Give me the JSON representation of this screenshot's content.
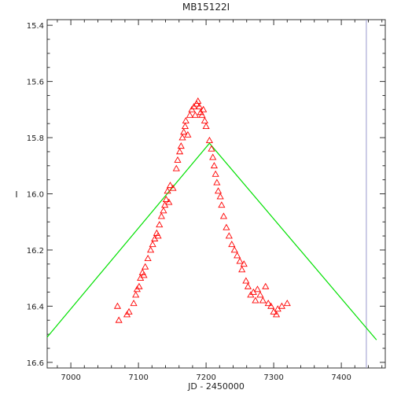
{
  "chart_data": {
    "type": "scatter",
    "title": "MB15122I",
    "xlabel": "JD - 2450000",
    "ylabel": "I",
    "xlim": [
      6965,
      7465
    ],
    "ylim": [
      16.62,
      15.38
    ],
    "y_axis_inverted": true,
    "xticks": [
      "7000",
      "7100",
      "7200",
      "7300",
      "7400"
    ],
    "yticks": [
      "15.4",
      "15.6",
      "15.8",
      "16.0",
      "16.2",
      "16.4",
      "16.6"
    ],
    "grid": false,
    "marker": "open-triangle",
    "colors": {
      "points": "#ff0000",
      "model": "#00e000",
      "marker_line": "#9999cc",
      "frame": "#333333"
    },
    "series": [
      {
        "values": [
          [
            7069,
            16.4
          ],
          [
            7071,
            16.45
          ],
          [
            7083,
            16.43
          ],
          [
            7086,
            16.42
          ],
          [
            7093,
            16.39
          ],
          [
            7096,
            16.36
          ],
          [
            7098,
            16.34
          ],
          [
            7101,
            16.33
          ],
          [
            7103,
            16.3
          ],
          [
            7106,
            16.28
          ],
          [
            7108,
            16.29
          ],
          [
            7110,
            16.26
          ],
          [
            7114,
            16.23
          ],
          [
            7118,
            16.2
          ],
          [
            7121,
            16.18
          ],
          [
            7124,
            16.16
          ],
          [
            7127,
            16.14
          ],
          [
            7129,
            16.15
          ],
          [
            7131,
            16.11
          ],
          [
            7134,
            16.08
          ],
          [
            7137,
            16.06
          ],
          [
            7139,
            16.04
          ],
          [
            7141,
            16.02
          ],
          [
            7143,
            15.99
          ],
          [
            7145,
            16.03
          ],
          [
            7147,
            15.97
          ],
          [
            7151,
            15.98
          ],
          [
            7156,
            15.91
          ],
          [
            7158,
            15.88
          ],
          [
            7161,
            15.85
          ],
          [
            7163,
            15.83
          ],
          [
            7165,
            15.8
          ],
          [
            7167,
            15.78
          ],
          [
            7169,
            15.76
          ],
          [
            7170,
            15.74
          ],
          [
            7173,
            15.79
          ],
          [
            7176,
            15.72
          ],
          [
            7179,
            15.7
          ],
          [
            7182,
            15.69
          ],
          [
            7184,
            15.72
          ],
          [
            7186,
            15.68
          ],
          [
            7188,
            15.67
          ],
          [
            7190,
            15.69
          ],
          [
            7192,
            15.71
          ],
          [
            7194,
            15.72
          ],
          [
            7196,
            15.7
          ],
          [
            7198,
            15.74
          ],
          [
            7200,
            15.76
          ],
          [
            7205,
            15.81
          ],
          [
            7208,
            15.84
          ],
          [
            7210,
            15.87
          ],
          [
            7212,
            15.9
          ],
          [
            7214,
            15.93
          ],
          [
            7216,
            15.96
          ],
          [
            7218,
            15.99
          ],
          [
            7221,
            16.01
          ],
          [
            7223,
            16.04
          ],
          [
            7226,
            16.08
          ],
          [
            7230,
            16.12
          ],
          [
            7234,
            16.15
          ],
          [
            7238,
            16.18
          ],
          [
            7242,
            16.2
          ],
          [
            7246,
            16.22
          ],
          [
            7250,
            16.24
          ],
          [
            7253,
            16.27
          ],
          [
            7256,
            16.25
          ],
          [
            7259,
            16.31
          ],
          [
            7262,
            16.33
          ],
          [
            7266,
            16.36
          ],
          [
            7270,
            16.35
          ],
          [
            7273,
            16.38
          ],
          [
            7276,
            16.34
          ],
          [
            7280,
            16.36
          ],
          [
            7284,
            16.38
          ],
          [
            7288,
            16.33
          ],
          [
            7292,
            16.39
          ],
          [
            7296,
            16.4
          ],
          [
            7300,
            16.42
          ],
          [
            7304,
            16.43
          ],
          [
            7306,
            16.41
          ],
          [
            7312,
            16.4
          ],
          [
            7320,
            16.39
          ]
        ]
      },
      {
        "type": "line",
        "values": [
          [
            6965,
            16.51
          ],
          [
            7205,
            15.82
          ],
          [
            7452,
            16.52
          ]
        ]
      }
    ],
    "vertical_marker_x": 7437
  }
}
